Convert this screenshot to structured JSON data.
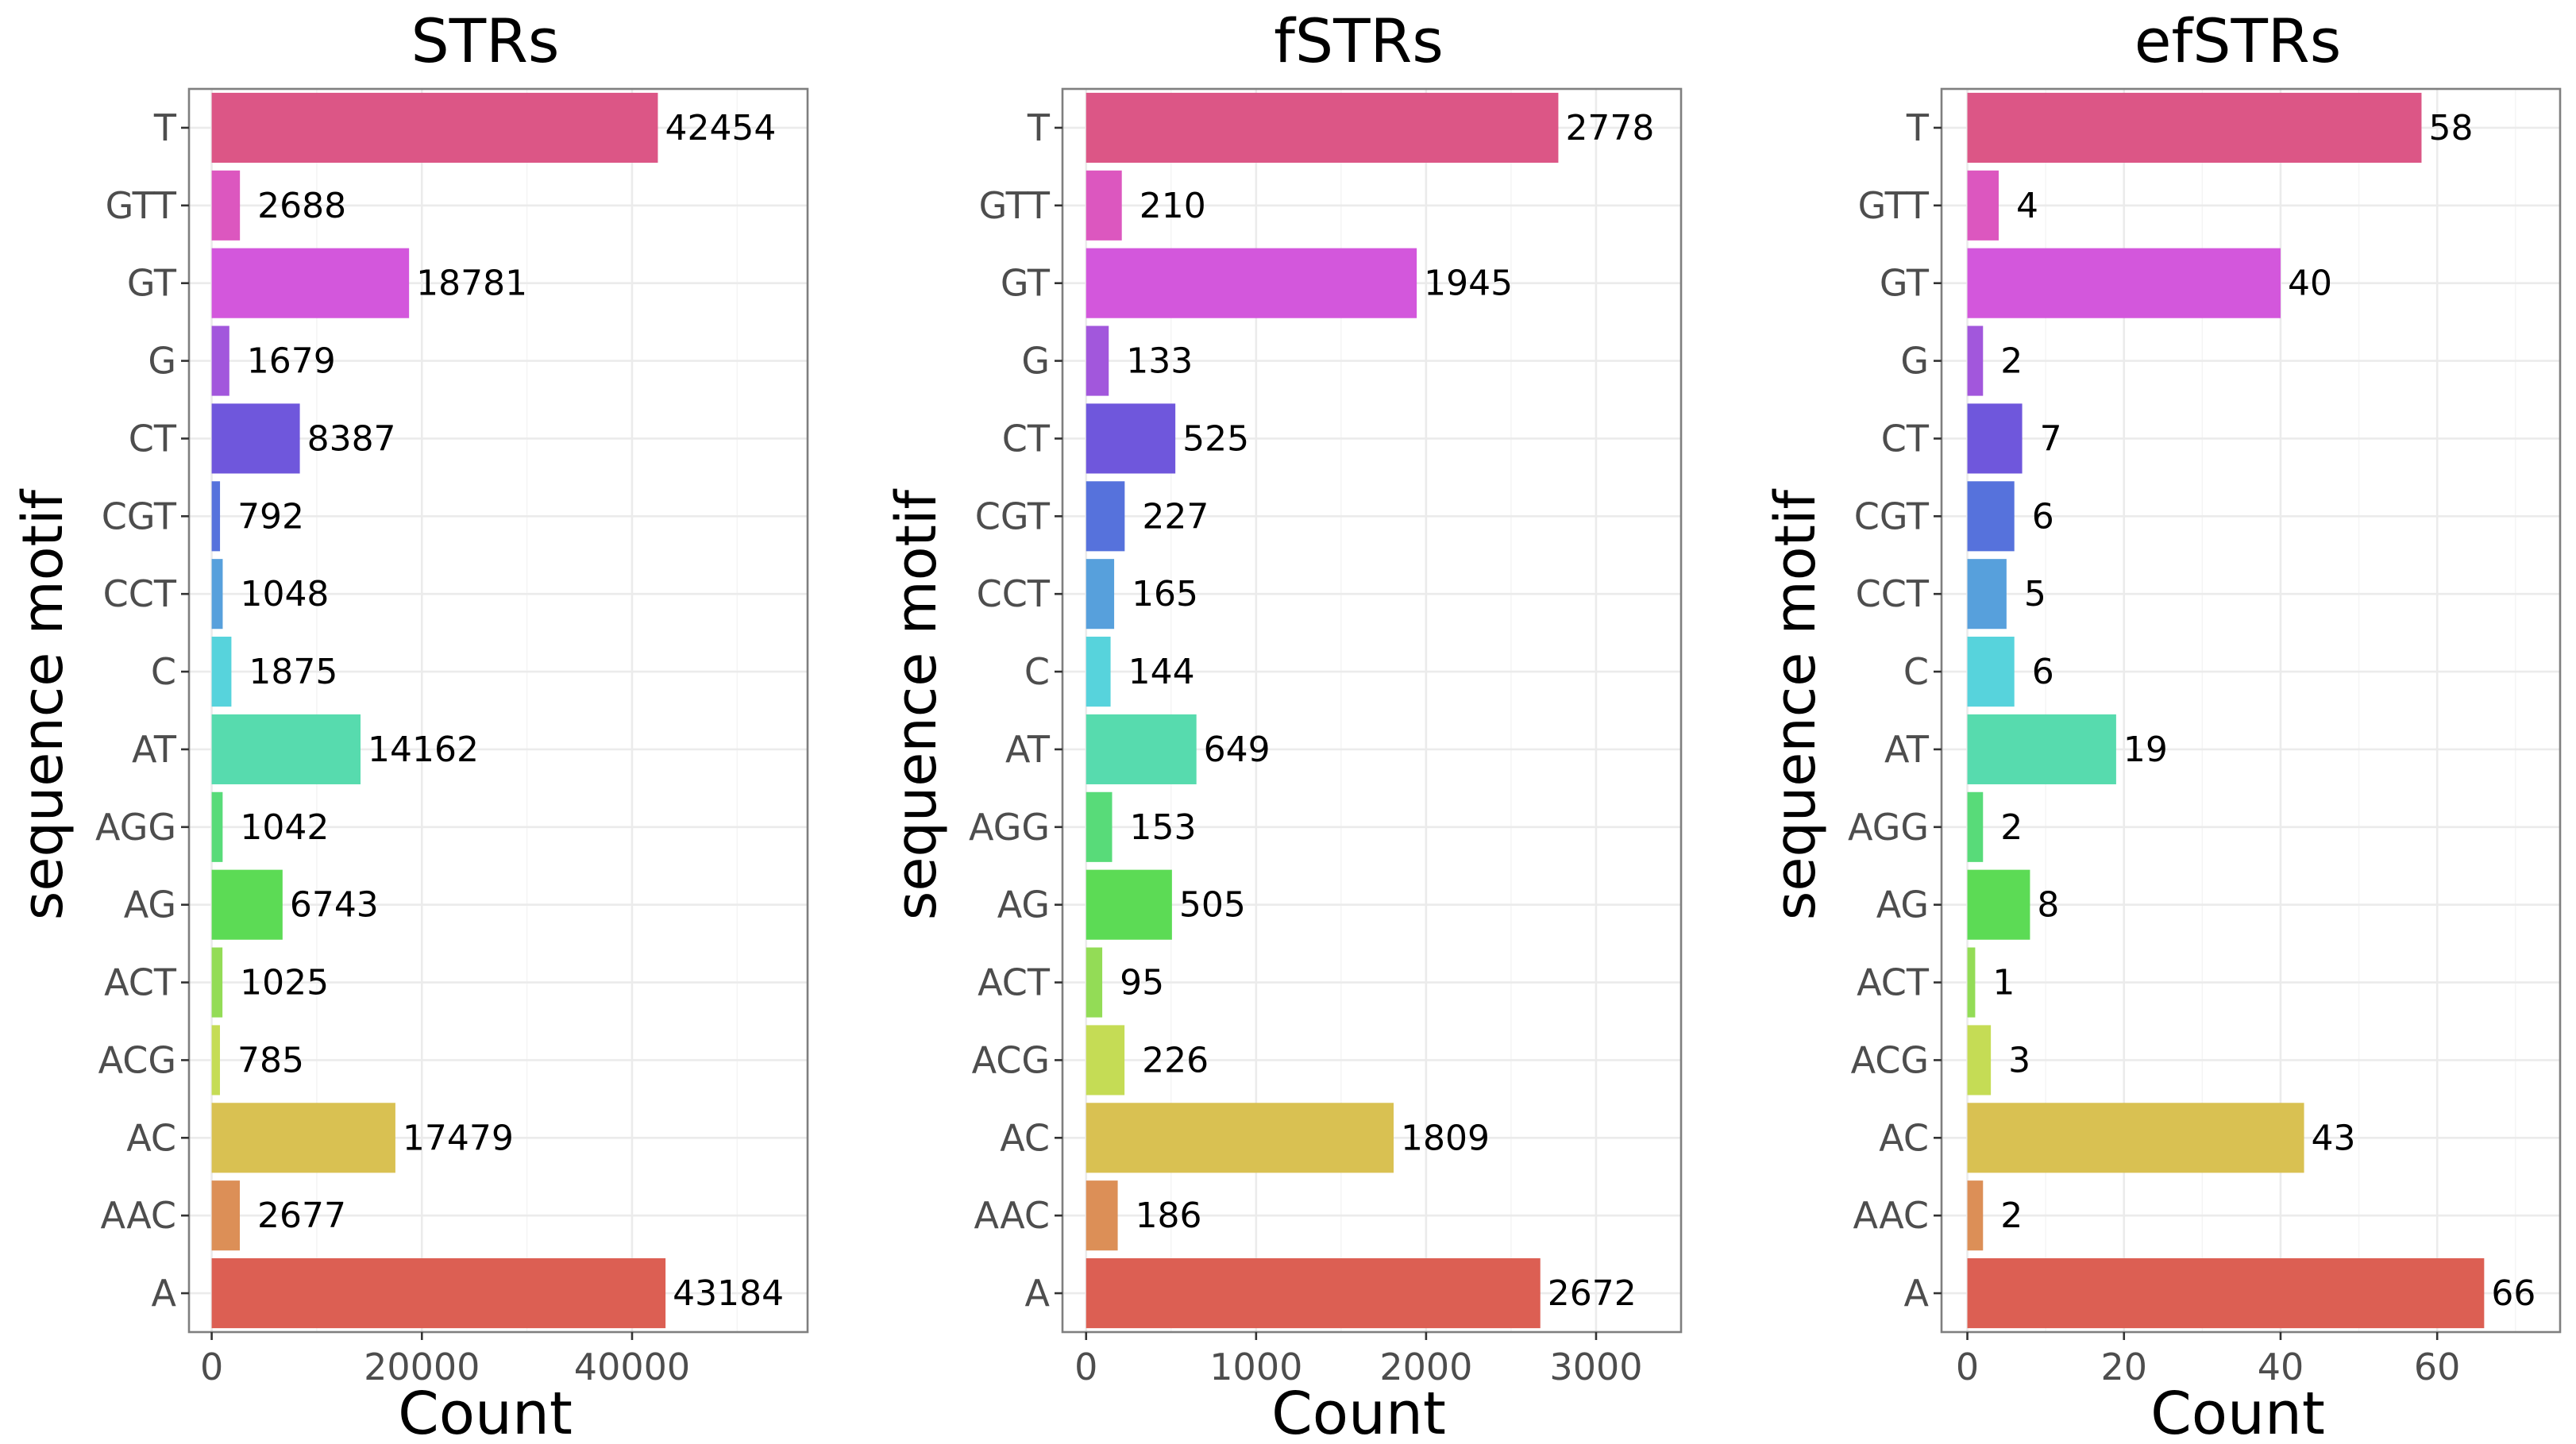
{
  "chart_data": [
    {
      "type": "bar",
      "orientation": "horizontal",
      "title": "STRs",
      "xlabel": "Count",
      "ylabel": "sequence motif",
      "categories": [
        "A",
        "AAC",
        "AC",
        "ACG",
        "ACT",
        "AG",
        "AGG",
        "AT",
        "C",
        "CCT",
        "CGT",
        "CT",
        "G",
        "GT",
        "GTT",
        "T"
      ],
      "values": [
        43184,
        2677,
        17479,
        785,
        1025,
        6743,
        1042,
        14162,
        1875,
        1048,
        792,
        8387,
        1679,
        18781,
        2688,
        42454
      ],
      "xlim": [
        -2160,
        56700
      ],
      "xticks": [
        0,
        20000,
        40000
      ],
      "grid": true
    },
    {
      "type": "bar",
      "orientation": "horizontal",
      "title": "fSTRs",
      "xlabel": "Count",
      "ylabel": "sequence motif",
      "categories": [
        "A",
        "AAC",
        "AC",
        "ACG",
        "ACT",
        "AG",
        "AGG",
        "AT",
        "C",
        "CCT",
        "CGT",
        "CT",
        "G",
        "GT",
        "GTT",
        "T"
      ],
      "values": [
        2672,
        186,
        1809,
        226,
        95,
        505,
        153,
        649,
        144,
        165,
        227,
        525,
        133,
        1945,
        210,
        2778
      ],
      "xlim": [
        -139,
        3500
      ],
      "xticks": [
        0,
        1000,
        2000,
        3000
      ],
      "grid": true
    },
    {
      "type": "bar",
      "orientation": "horizontal",
      "title": "efSTRs",
      "xlabel": "Count",
      "ylabel": "sequence motif",
      "categories": [
        "A",
        "AAC",
        "AC",
        "ACG",
        "ACT",
        "AG",
        "AGG",
        "AT",
        "C",
        "CCT",
        "CGT",
        "CT",
        "G",
        "GT",
        "GTT",
        "T"
      ],
      "values": [
        66,
        2,
        43,
        3,
        1,
        8,
        2,
        19,
        6,
        5,
        6,
        7,
        2,
        40,
        4,
        58
      ],
      "xlim": [
        -3.3,
        75.7
      ],
      "xticks": [
        0,
        20,
        40,
        60
      ],
      "grid": true
    }
  ],
  "colors": {
    "A": "#dc5f53",
    "AAC": "#dc8f57",
    "AC": "#d9c152",
    "ACG": "#c5dc55",
    "ACT": "#93dc56",
    "AG": "#5cdb55",
    "AGG": "#58db79",
    "AT": "#57dbae",
    "C": "#57d3dc",
    "CCT": "#57a0dc",
    "CGT": "#5672dc",
    "CT": "#6f57dc",
    "G": "#a257dc",
    "GT": "#d357dc",
    "GTT": "#dc57bf",
    "T": "#dc5686"
  }
}
